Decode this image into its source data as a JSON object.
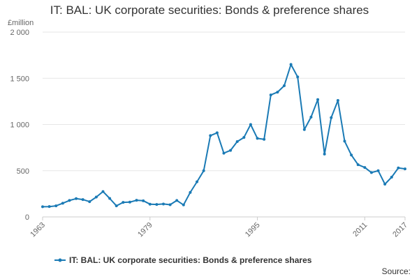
{
  "title": "IT: BAL: UK corporate securities: Bonds & preference shares",
  "source_label": "Source:",
  "chart_data": {
    "type": "line",
    "title": "IT: BAL: UK corporate securities: Bonds & preference shares",
    "ylabel": "£million",
    "xlabel": "",
    "ylim": [
      0,
      2000
    ],
    "xlim": [
      1963,
      2017
    ],
    "y_ticks": [
      0,
      500,
      1000,
      1500,
      2000
    ],
    "y_tick_labels": [
      "0",
      "500",
      "1 000",
      "1 500",
      "2 000"
    ],
    "x_ticks": [
      1963,
      1979,
      1995,
      2011,
      2017
    ],
    "x_tick_labels": [
      "1963",
      "1979",
      "1995",
      "2011",
      "2017"
    ],
    "grid": "horizontal",
    "legend_placement": "bottom",
    "series": [
      {
        "name": "IT: BAL: UK corporate securities: Bonds & preference shares",
        "color": "#1a7ab5",
        "x": [
          1963,
          1964,
          1965,
          1966,
          1967,
          1968,
          1969,
          1970,
          1971,
          1972,
          1973,
          1974,
          1975,
          1976,
          1977,
          1978,
          1979,
          1980,
          1981,
          1982,
          1983,
          1984,
          1985,
          1986,
          1987,
          1988,
          1989,
          1990,
          1991,
          1992,
          1993,
          1994,
          1995,
          1996,
          1997,
          1998,
          1999,
          2000,
          2001,
          2002,
          2003,
          2004,
          2005,
          2006,
          2007,
          2008,
          2009,
          2010,
          2011,
          2012,
          2013,
          2014,
          2015,
          2016,
          2017
        ],
        "values": [
          110,
          112,
          120,
          148,
          178,
          198,
          188,
          165,
          215,
          275,
          200,
          120,
          158,
          160,
          180,
          175,
          138,
          135,
          140,
          132,
          178,
          130,
          265,
          380,
          500,
          880,
          910,
          690,
          720,
          815,
          860,
          1000,
          850,
          840,
          1320,
          1350,
          1420,
          1650,
          1515,
          945,
          1080,
          1270,
          680,
          1075,
          1260,
          820,
          670,
          565,
          535,
          480,
          500,
          355,
          430,
          530,
          520
        ]
      }
    ]
  }
}
